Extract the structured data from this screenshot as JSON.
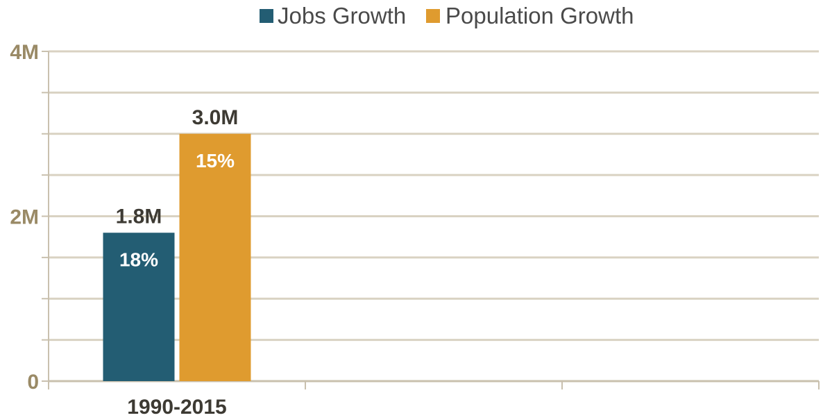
{
  "chart_data": {
    "type": "bar",
    "categories": [
      "1990-2015",
      "",
      ""
    ],
    "series": [
      {
        "name": "Jobs Growth",
        "values": [
          1.8,
          null,
          null
        ],
        "value_labels": [
          "1.8M",
          "",
          ""
        ],
        "pct_labels": [
          "18%",
          "",
          ""
        ],
        "color": "#235d73"
      },
      {
        "name": "Population Growth",
        "values": [
          3.0,
          null,
          null
        ],
        "value_labels": [
          "3.0M",
          "",
          ""
        ],
        "pct_labels": [
          "15%",
          "",
          ""
        ],
        "color": "#df9b2f"
      }
    ],
    "yticks": [
      {
        "value": 0,
        "label": "0"
      },
      {
        "value": 2,
        "label": "2M"
      },
      {
        "value": 4,
        "label": "4M"
      }
    ],
    "ylim": [
      0,
      4
    ],
    "grid": true,
    "legend_position": "top-center",
    "colors": {
      "grid": "#d9d2c2",
      "axis": "#c9c0ae",
      "tick_text": "#9a8a66",
      "label_text": "#3d3a33"
    }
  }
}
